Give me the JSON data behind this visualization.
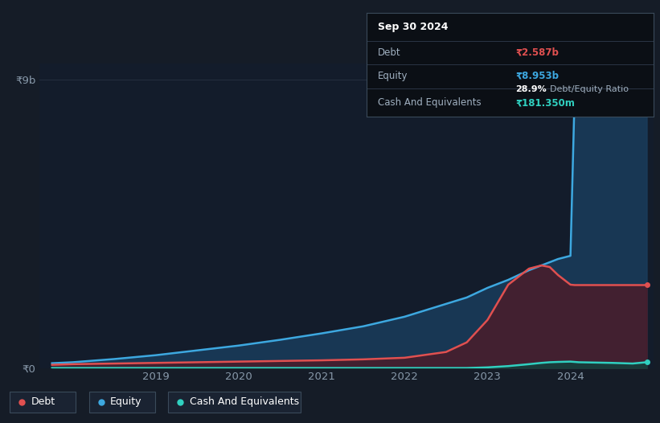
{
  "bg_color": "#151c27",
  "plot_bg_color": "#131c2b",
  "grid_color": "#252f3f",
  "years": [
    2017.75,
    2018.0,
    2018.5,
    2019.0,
    2019.5,
    2020.0,
    2020.5,
    2021.0,
    2021.5,
    2022.0,
    2022.5,
    2022.75,
    2023.0,
    2023.25,
    2023.5,
    2023.65,
    2023.75,
    2023.85,
    2024.0,
    2024.05,
    2024.1,
    2024.5,
    2024.75,
    2024.92
  ],
  "equity": [
    0.15,
    0.18,
    0.28,
    0.4,
    0.55,
    0.7,
    0.88,
    1.08,
    1.3,
    1.6,
    2.0,
    2.2,
    2.5,
    2.75,
    3.05,
    3.2,
    3.3,
    3.4,
    3.5,
    8.5,
    8.9,
    8.953,
    8.953,
    8.953
  ],
  "debt": [
    0.1,
    0.12,
    0.14,
    0.16,
    0.18,
    0.2,
    0.22,
    0.24,
    0.27,
    0.32,
    0.5,
    0.8,
    1.5,
    2.6,
    3.1,
    3.2,
    3.15,
    2.9,
    2.6,
    2.587,
    2.587,
    2.587,
    2.587,
    2.587
  ],
  "cash": [
    0.0,
    0.0,
    0.0,
    0.0,
    0.0,
    0.0,
    0.0,
    0.0,
    0.0,
    0.0,
    0.0,
    0.0,
    0.02,
    0.06,
    0.12,
    0.16,
    0.18,
    0.19,
    0.2,
    0.19,
    0.18,
    0.16,
    0.14,
    0.1813
  ],
  "equity_color": "#3da8e0",
  "equity_fill": "#1a3d5c",
  "debt_color": "#e05050",
  "debt_fill": "#4a1c2a",
  "cash_color": "#30d0c0",
  "cash_fill": "#14403c",
  "ylim": [
    0,
    9.5
  ],
  "xlim": [
    2017.6,
    2025.0
  ],
  "ytick_labels": [
    "₹0",
    "₹9b"
  ],
  "ytick_values": [
    0,
    9
  ],
  "xtick_labels": [
    "2019",
    "2020",
    "2021",
    "2022",
    "2023",
    "2024"
  ],
  "xtick_values": [
    2019,
    2020,
    2021,
    2022,
    2023,
    2024
  ],
  "legend_labels": [
    "Debt",
    "Equity",
    "Cash And Equivalents"
  ],
  "legend_colors": [
    "#e05050",
    "#3da8e0",
    "#30d0c0"
  ],
  "tooltip_date": "Sep 30 2024",
  "tooltip_debt_label": "Debt",
  "tooltip_debt_value": "₹2.587b",
  "tooltip_equity_label": "Equity",
  "tooltip_equity_value": "₹8.953b",
  "tooltip_ratio": "28.9%",
  "tooltip_ratio_label": "Debt/Equity Ratio",
  "tooltip_cash_label": "Cash And Equivalents",
  "tooltip_cash_value": "₹181.350m",
  "dot_equity_x": 2024.92,
  "dot_equity_y": 8.953,
  "dot_debt_x": 2024.92,
  "dot_debt_y": 2.587,
  "dot_cash_x": 2024.92,
  "dot_cash_y": 0.1813
}
